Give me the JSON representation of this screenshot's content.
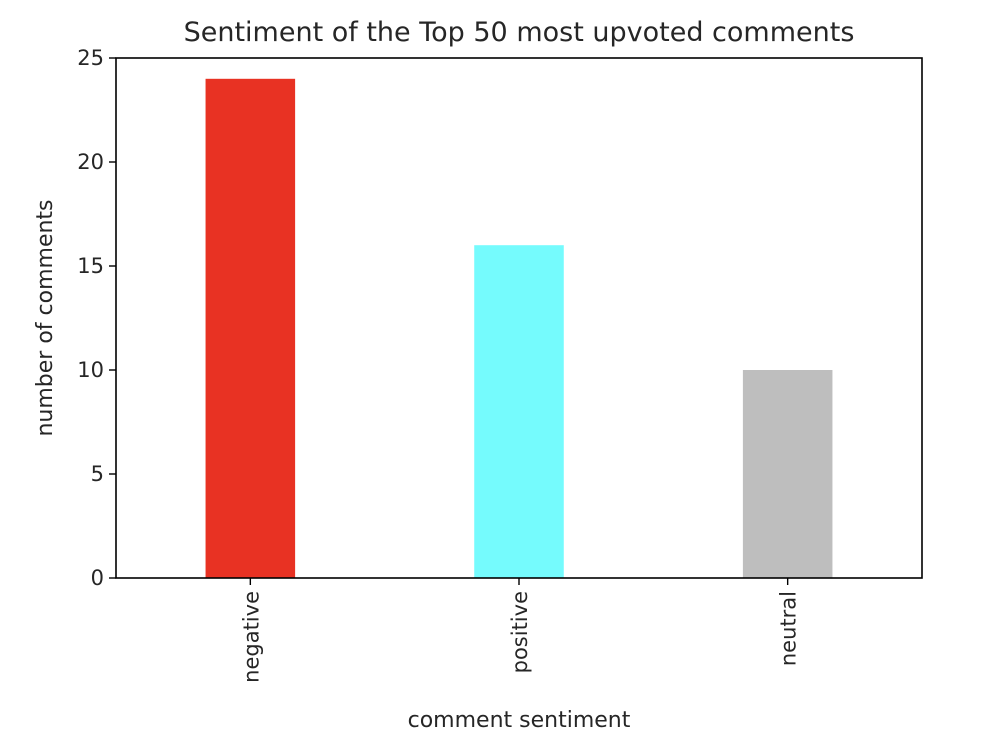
{
  "chart_data": {
    "type": "bar",
    "title": "Sentiment of the Top 50 most upvoted comments",
    "xlabel": "comment sentiment",
    "ylabel": "number of comments",
    "categories": [
      "negative",
      "positive",
      "neutral"
    ],
    "values": [
      24,
      16,
      10
    ],
    "colors": [
      "#e83223",
      "#75fbfd",
      "#bebebe"
    ],
    "ylim": [
      0,
      25
    ],
    "yticks": [
      0,
      5,
      10,
      15,
      20,
      25
    ],
    "grid": false,
    "legend": "none"
  }
}
